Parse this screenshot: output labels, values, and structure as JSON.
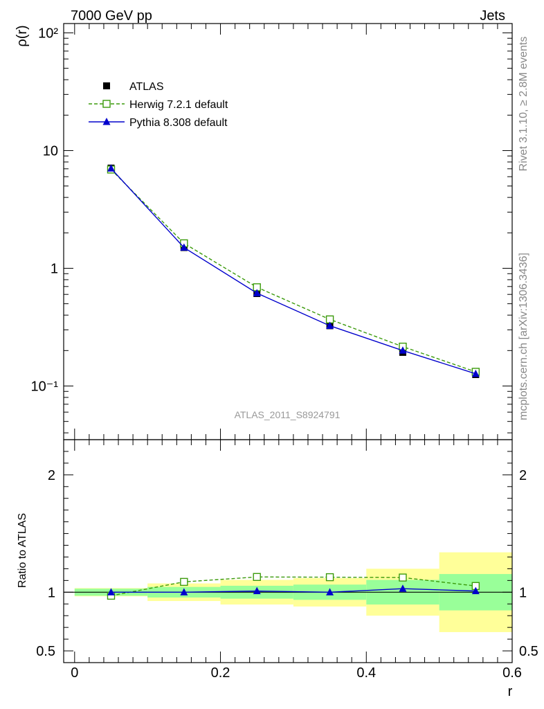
{
  "header": {
    "process": "7000 GeV pp",
    "category": "Jets"
  },
  "side_labels": {
    "rivet": "Rivet 3.1.10, ≥ 2.8M events",
    "source": "mcplots.cern.ch [arXiv:1306.3436]"
  },
  "chart_data": [
    {
      "type": "line",
      "analysis_tag": "ATLAS_2011_S8924791",
      "ylabel": "ρ(r)",
      "yscale": "log",
      "ylim": [
        0.035,
        120
      ],
      "xlim": [
        -0.015,
        0.6
      ],
      "ytick_labels": [
        "10⁻¹",
        "1",
        "10",
        "10²"
      ],
      "legend_position": "top-left",
      "x": [
        0.05,
        0.15,
        0.25,
        0.35,
        0.45,
        0.55
      ],
      "x_bin_edges": [
        0.0,
        0.1,
        0.2,
        0.3,
        0.4,
        0.5,
        0.6
      ],
      "series": [
        {
          "name": "ATLAS",
          "values": [
            7.1,
            1.5,
            0.61,
            0.325,
            0.193,
            0.125
          ],
          "color": "#000000",
          "marker": "filled-square"
        },
        {
          "name": "Herwig 7.2.1 default",
          "values": [
            6.9,
            1.63,
            0.69,
            0.368,
            0.216,
            0.132
          ],
          "color": "#3a9a0a",
          "marker": "open-square",
          "line": "dashed"
        },
        {
          "name": "Pythia 8.308 default",
          "values": [
            7.05,
            1.5,
            0.615,
            0.325,
            0.2,
            0.127
          ],
          "color": "#0000cc",
          "marker": "filled-triangle",
          "line": "solid"
        }
      ]
    },
    {
      "type": "line",
      "xlabel": "r",
      "ylabel": "Ratio to ATLAS",
      "ylim": [
        0.4,
        2.3
      ],
      "xlim": [
        -0.015,
        0.6
      ],
      "xtick_labels": [
        "0",
        "0.2",
        "0.4",
        "0.6"
      ],
      "ytick_labels": [
        "0.5",
        "1",
        "2"
      ],
      "reference_line": 1,
      "bands": {
        "x_bin_edges": [
          0.0,
          0.1,
          0.2,
          0.3,
          0.4,
          0.5,
          0.6
        ],
        "stat_band": {
          "color": "#99ff99",
          "low": [
            0.97,
            0.955,
            0.945,
            0.935,
            0.895,
            0.845
          ],
          "high": [
            1.03,
            1.045,
            1.055,
            1.065,
            1.105,
            1.155
          ]
        },
        "total_band": {
          "color": "#ffff99",
          "low": [
            0.965,
            0.925,
            0.895,
            0.878,
            0.8,
            0.66
          ],
          "high": [
            1.035,
            1.075,
            1.105,
            1.12,
            1.2,
            1.34
          ]
        }
      },
      "x": [
        0.05,
        0.15,
        0.25,
        0.35,
        0.45,
        0.55
      ],
      "series": [
        {
          "name": "Herwig 7.2.1 default",
          "values": [
            0.97,
            1.088,
            1.13,
            1.128,
            1.125,
            1.053
          ],
          "color": "#3a9a0a",
          "marker": "open-square",
          "line": "dashed"
        },
        {
          "name": "Pythia 8.308 default",
          "values": [
            1.0,
            1.0,
            1.01,
            1.0,
            1.03,
            1.01
          ],
          "color": "#0000cc",
          "marker": "filled-triangle",
          "line": "solid"
        }
      ]
    }
  ]
}
